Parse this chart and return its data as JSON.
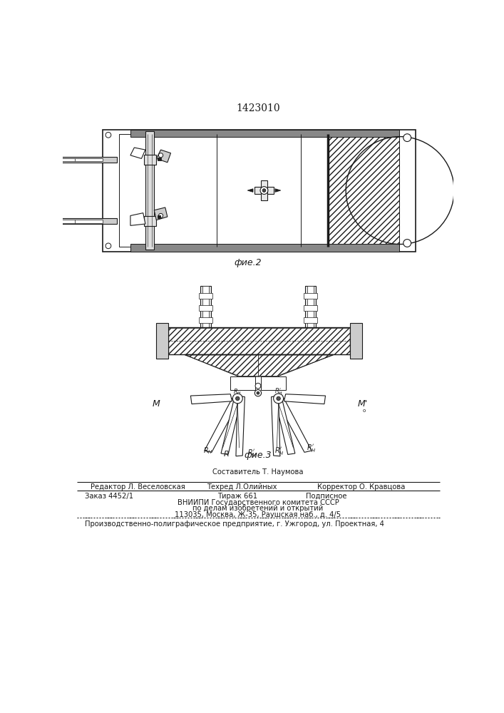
{
  "patent_number": "1423010",
  "fig2_label": "фие.2",
  "fig3_label": "фие.3",
  "footer_line1_center": "Составитель Т. Наумова",
  "footer_line1_left": "Редактор Л. Веселовская",
  "footer_line2_center": "Техред Л.Олийных",
  "footer_line2_right": "Корректор О. Кравцова",
  "footer_line3_left": "Заказ 4452/1",
  "footer_line3_center": "Тираж 661",
  "footer_line3_right": "Подписное",
  "footer_line4": "ВНИИПИ Государственного комитета СССР",
  "footer_line5": "по делам изобретений и открытий",
  "footer_line6": "113035, Москва, Ж-35, Раушская наб., д. 4/5",
  "footer_line7": "Производственно-полиграфическое предприятие, г. Ужгород, ул. Проектная, 4",
  "bg_color": "#ffffff",
  "line_color": "#1a1a1a"
}
